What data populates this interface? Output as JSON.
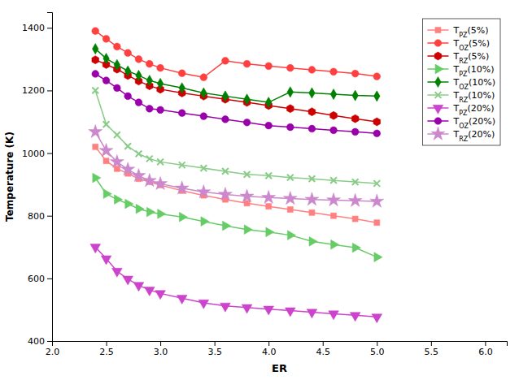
{
  "chart_data": {
    "type": "line",
    "xlabel": "ER",
    "ylabel": "Temperature (K)",
    "x": [
      2.4,
      2.5,
      2.6,
      2.7,
      2.8,
      2.9,
      3.0,
      3.2,
      3.4,
      3.6,
      3.8,
      4.0,
      4.2,
      4.4,
      4.6,
      4.8,
      5.0
    ],
    "series": [
      {
        "name": "TPZ(5%)",
        "color": "#FF8080",
        "marker": "square",
        "values": [
          1020,
          975,
          950,
          935,
          918,
          908,
          898,
          880,
          865,
          852,
          840,
          830,
          820,
          810,
          800,
          790,
          778
        ]
      },
      {
        "name": "TOZ(5%)",
        "color": "#FF4040",
        "marker": "circle",
        "values": [
          1390,
          1365,
          1340,
          1320,
          1300,
          1285,
          1272,
          1255,
          1242,
          1295,
          1285,
          1278,
          1272,
          1266,
          1260,
          1254,
          1245
        ]
      },
      {
        "name": "TRZ(5%)",
        "color": "#CC0000",
        "marker": "hexagon",
        "values": [
          1298,
          1283,
          1268,
          1248,
          1230,
          1215,
          1204,
          1192,
          1182,
          1172,
          1162,
          1152,
          1142,
          1132,
          1120,
          1110,
          1100
        ]
      },
      {
        "name": "TPZ(10%)",
        "color": "#66CC66",
        "marker": "triangle-right",
        "values": [
          921,
          870,
          852,
          838,
          822,
          812,
          806,
          796,
          782,
          768,
          756,
          748,
          738,
          718,
          708,
          698,
          668
        ]
      },
      {
        "name": "TOZ(10%)",
        "color": "#008000",
        "marker": "diamond",
        "values": [
          1333,
          1302,
          1282,
          1262,
          1248,
          1232,
          1222,
          1208,
          1192,
          1182,
          1172,
          1162,
          1195,
          1192,
          1188,
          1184,
          1182
        ]
      },
      {
        "name": "TRZ(10%)",
        "color": "#88CC88",
        "marker": "x",
        "values": [
          1200,
          1092,
          1058,
          1022,
          998,
          982,
          972,
          962,
          952,
          942,
          932,
          928,
          922,
          918,
          913,
          908,
          903
        ]
      },
      {
        "name": "TPZ(20%)",
        "color": "#CC44CC",
        "marker": "triangle-down",
        "values": [
          700,
          663,
          623,
          598,
          578,
          563,
          552,
          537,
          522,
          512,
          507,
          502,
          497,
          492,
          487,
          482,
          477
        ]
      },
      {
        "name": "TOZ(20%)",
        "color": "#9900AA",
        "marker": "circle",
        "values": [
          1253,
          1232,
          1208,
          1182,
          1162,
          1142,
          1138,
          1128,
          1118,
          1108,
          1098,
          1088,
          1083,
          1078,
          1073,
          1068,
          1063
        ]
      },
      {
        "name": "TRZ(20%)",
        "color": "#CC88CC",
        "marker": "star",
        "values": [
          1068,
          1008,
          972,
          948,
          928,
          912,
          902,
          888,
          876,
          868,
          862,
          858,
          855,
          852,
          850,
          848,
          846
        ]
      }
    ],
    "xlim": [
      2.0,
      6.2
    ],
    "ylim": [
      400,
      1450
    ],
    "xticks": [
      {
        "value": 2.0,
        "label": "2.0"
      },
      2.5,
      {
        "value": 3.0,
        "label": "3.0"
      },
      3.5,
      {
        "value": 4.0,
        "label": "4.0"
      },
      4.5,
      {
        "value": 5.0,
        "label": "5.0"
      },
      5.5,
      {
        "value": 6.0,
        "label": "6.0"
      }
    ],
    "yticks": [
      400,
      600,
      800,
      1000,
      1200,
      1400
    ],
    "legend": "upper-right"
  }
}
